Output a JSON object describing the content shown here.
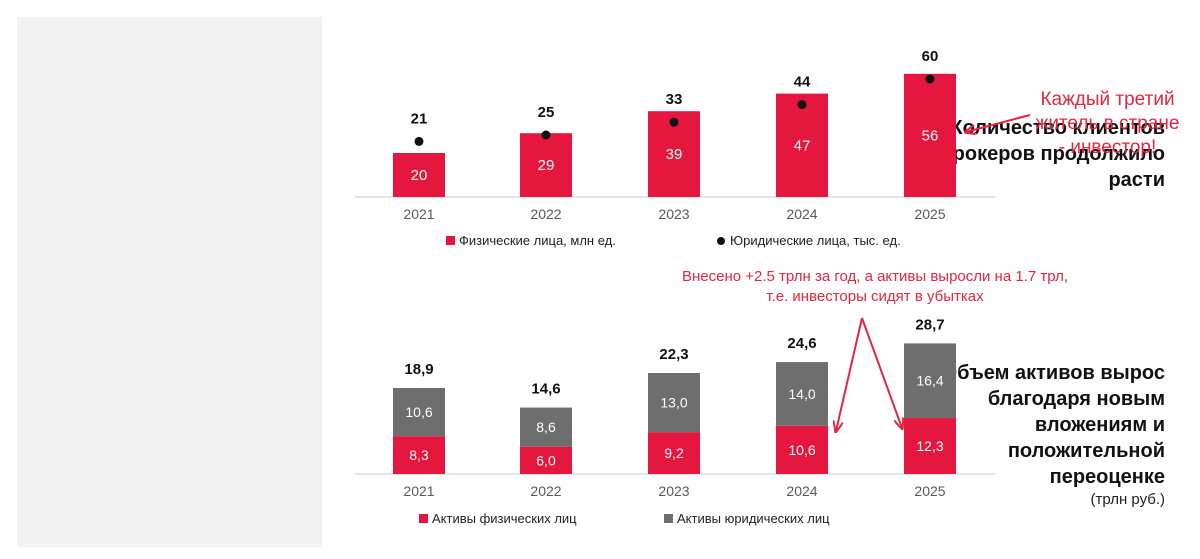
{
  "chart_data": [
    {
      "type": "bar",
      "title": "Количество клиентов брокеров продолжило расти",
      "categories": [
        "2021",
        "2022",
        "2023",
        "2024",
        "2025"
      ],
      "series": [
        {
          "name": "Физические лица, млн ед.",
          "kind": "bar",
          "color": "#e5173f",
          "values": [
            20,
            29,
            39,
            47,
            56
          ]
        },
        {
          "name": "Юридические лица, тыс. ед.",
          "kind": "dot",
          "color": "#111111",
          "values": [
            21,
            25,
            33,
            44,
            60
          ]
        }
      ],
      "grid": false,
      "legend": "bottom"
    },
    {
      "type": "bar",
      "stacked": true,
      "title": "Объем активов вырос благодаря новым вложениям и положительной переоценке",
      "unit": "(трлн руб.)",
      "categories": [
        "2021",
        "2022",
        "2023",
        "2024",
        "2025"
      ],
      "series": [
        {
          "name": "Активы физических лиц",
          "color": "#e5173f",
          "values": [
            "8,3",
            "6,0",
            "9,2",
            "10,6",
            "12,3"
          ]
        },
        {
          "name": "Активы юридических лиц",
          "color": "#6e6e6e",
          "values": [
            "10,6",
            "8,6",
            "13,0",
            "14,0",
            "16,4"
          ]
        }
      ],
      "totals": [
        "18,9",
        "14,6",
        "22,3",
        "24,6",
        "28,7"
      ],
      "grid": false,
      "legend": "bottom"
    }
  ],
  "annotations": {
    "right": [
      "Каждый третий",
      "житель в стране",
      "- инвестор!"
    ],
    "middle": [
      "Внесено +2.5 трлн за год, а активы выросли на 1.7 трл,",
      "т.е. инвесторы сидят в убытках"
    ],
    "color": "#e5263e"
  }
}
